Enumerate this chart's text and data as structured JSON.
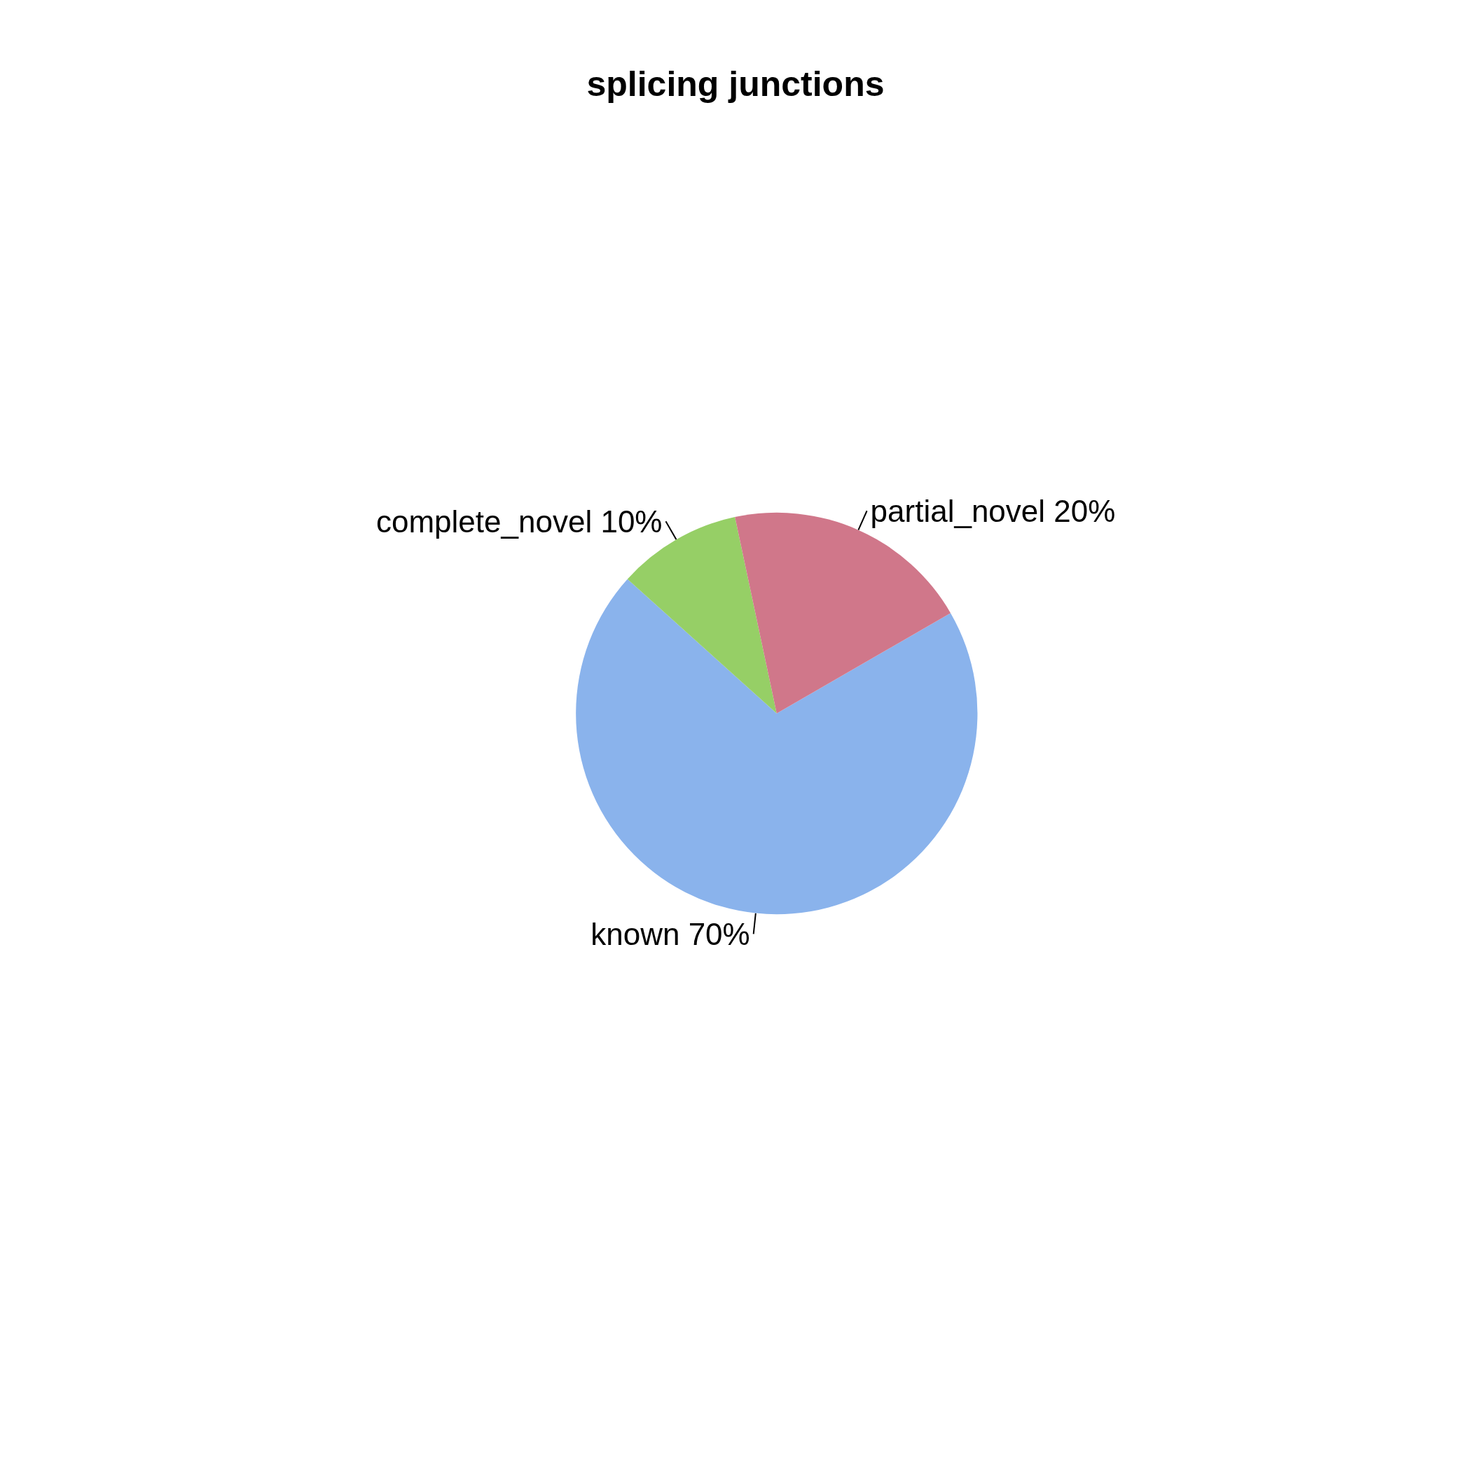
{
  "chart_data": {
    "type": "pie",
    "title": "splicing junctions",
    "categories": [
      "known",
      "complete_novel",
      "partial_novel"
    ],
    "values": [
      70,
      10,
      20
    ],
    "value_labels": [
      "70%",
      "10%",
      "20%"
    ],
    "colors": [
      "#8ab3ec",
      "#96cf66",
      "#d0778a"
    ]
  }
}
